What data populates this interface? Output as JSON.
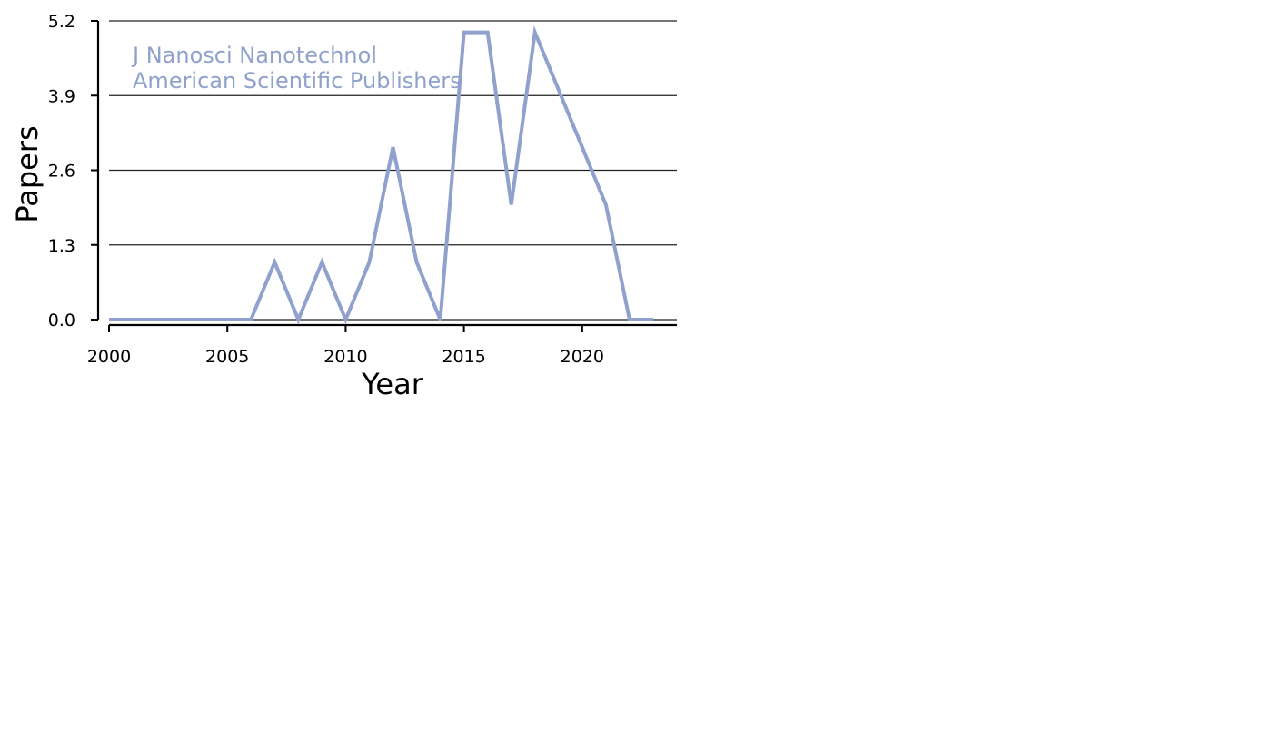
{
  "chart_data": {
    "type": "line",
    "xlabel": "Year",
    "ylabel": "Papers",
    "annotation": [
      "J Nanosci Nanotechnol",
      "American Scientific Publishers"
    ],
    "x": [
      2000,
      2001,
      2002,
      2003,
      2004,
      2005,
      2006,
      2007,
      2008,
      2009,
      2010,
      2011,
      2012,
      2013,
      2014,
      2015,
      2016,
      2017,
      2018,
      2019,
      2020,
      2021,
      2022,
      2023
    ],
    "series": [
      {
        "values": [
          0,
          0,
          0,
          0,
          0,
          0,
          0,
          1,
          0,
          1,
          0,
          1,
          3,
          1,
          0,
          5,
          5,
          2,
          5,
          4,
          3,
          2,
          0,
          0
        ],
        "color": "#8fa1cc"
      }
    ],
    "xlim": [
      2000,
      2024
    ],
    "ylim": [
      0,
      5.2
    ],
    "xticks": [
      "2000",
      "2005",
      "2010",
      "2015",
      "2020"
    ],
    "yticks": [
      "0.0",
      "1.3",
      "2.6",
      "3.9",
      "5.2"
    ],
    "grid": "horizontal",
    "annotation_position": "top-left"
  }
}
